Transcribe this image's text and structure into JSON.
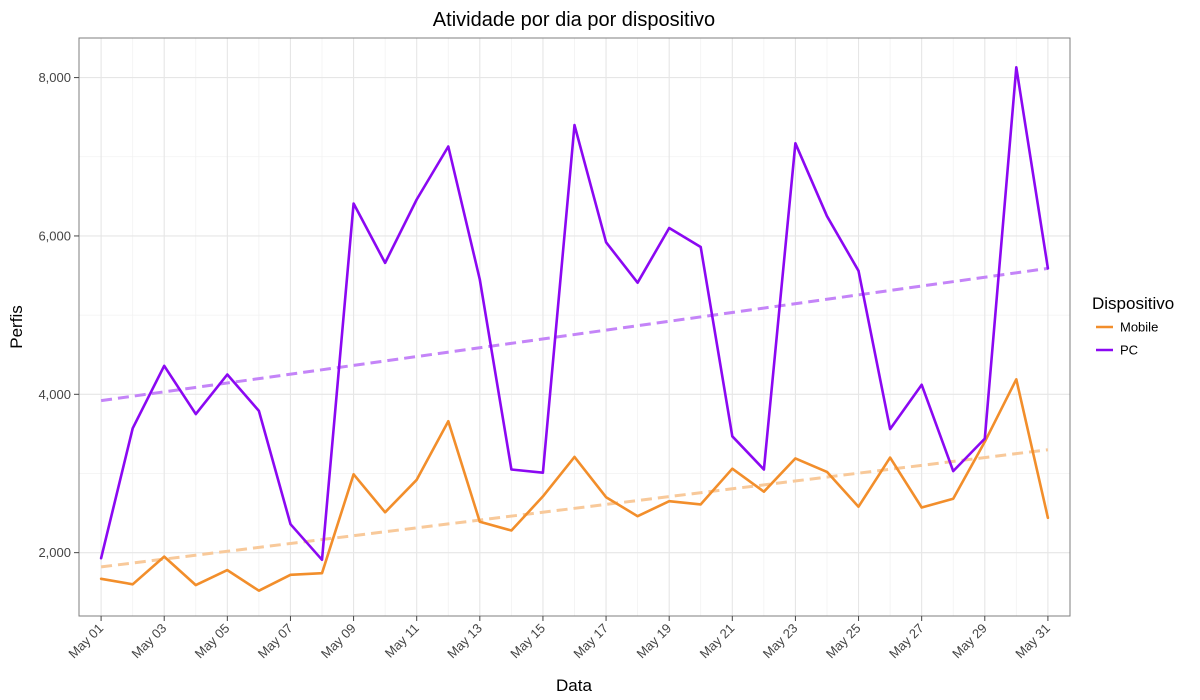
{
  "chart_data": {
    "type": "line",
    "title": "Atividade por dia por dispositivo",
    "xlabel": "Data",
    "ylabel": "Perfis",
    "x_tick_labels": [
      "May 01",
      "May 03",
      "May 05",
      "May 07",
      "May 09",
      "May 11",
      "May 13",
      "May 15",
      "May 17",
      "May 19",
      "May 21",
      "May 23",
      "May 25",
      "May 27",
      "May 29",
      "May 31"
    ],
    "y_tick_labels": [
      "2,000",
      "4,000",
      "6,000",
      "8,000"
    ],
    "y_ticks": [
      2000,
      4000,
      6000,
      8000
    ],
    "ylim": [
      1200,
      8500
    ],
    "xlim": [
      0.3,
      31.7
    ],
    "grid": true,
    "legend": {
      "title": "Dispositivo",
      "position": "right"
    },
    "x_days": [
      1,
      2,
      3,
      4,
      5,
      6,
      7,
      8,
      9,
      10,
      11,
      12,
      13,
      14,
      15,
      16,
      17,
      18,
      19,
      20,
      21,
      22,
      23,
      24,
      25,
      26,
      27,
      28,
      29,
      30,
      31
    ],
    "series": [
      {
        "name": "Mobile",
        "color": "#F28E2B",
        "values": [
          1670,
          1600,
          1950,
          1590,
          1780,
          1520,
          1720,
          1740,
          2990,
          2510,
          2920,
          3660,
          2390,
          2280,
          2710,
          3210,
          2700,
          2460,
          2650,
          2610,
          3060,
          2770,
          3190,
          3020,
          2580,
          3200,
          2570,
          2680,
          3400,
          4190,
          2440
        ],
        "trend": {
          "start": [
            1,
            1820
          ],
          "end": [
            31,
            3300
          ],
          "color": "#F8C99A"
        }
      },
      {
        "name": "PC",
        "color": "#8B08F2",
        "values": [
          1930,
          3570,
          4360,
          3750,
          4250,
          3790,
          2360,
          1910,
          6410,
          5660,
          6460,
          7130,
          5450,
          3050,
          3010,
          7400,
          5920,
          5410,
          6100,
          5860,
          3470,
          3050,
          7170,
          6250,
          5560,
          3560,
          4120,
          3030,
          3440,
          8130,
          5590
        ],
        "trend": {
          "start": [
            1,
            3920
          ],
          "end": [
            31,
            5590
          ],
          "color": "#C484F8"
        }
      }
    ]
  }
}
